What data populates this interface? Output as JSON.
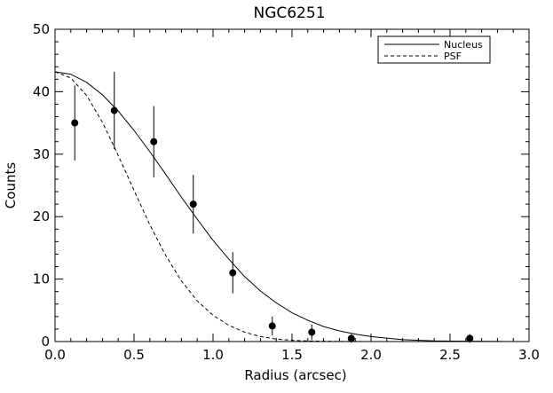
{
  "chart_data": {
    "type": "scatter",
    "title": "NGC6251",
    "xlabel": "Radius (arcsec)",
    "ylabel": "Counts",
    "xlim": [
      0.0,
      3.0
    ],
    "ylim": [
      0,
      50
    ],
    "xticks": [
      0.0,
      0.5,
      1.0,
      1.5,
      2.0,
      2.5,
      3.0
    ],
    "xtick_labels": [
      "0.0",
      "0.5",
      "1.0",
      "1.5",
      "2.0",
      "2.5",
      "3.0"
    ],
    "yticks": [
      0,
      10,
      20,
      30,
      40,
      50
    ],
    "ytick_labels": [
      "0",
      "10",
      "20",
      "30",
      "40",
      "50"
    ],
    "grid": false,
    "legend": {
      "placement": "top-right",
      "entries": [
        {
          "label": "Nucleus",
          "style": "solid"
        },
        {
          "label": "PSF",
          "style": "dashed"
        }
      ]
    },
    "points": [
      {
        "x": 0.125,
        "y": 35.0,
        "err": 6.0
      },
      {
        "x": 0.375,
        "y": 37.0,
        "err": 6.2
      },
      {
        "x": 0.625,
        "y": 32.0,
        "err": 5.7
      },
      {
        "x": 0.875,
        "y": 22.0,
        "err": 4.7
      },
      {
        "x": 1.125,
        "y": 11.0,
        "err": 3.3
      },
      {
        "x": 1.375,
        "y": 2.5,
        "err": 1.5
      },
      {
        "x": 1.625,
        "y": 1.5,
        "err": 1.2
      },
      {
        "x": 1.875,
        "y": 0.5,
        "err": 0.7
      },
      {
        "x": 2.625,
        "y": 0.5,
        "err": 0.7
      }
    ],
    "series": [
      {
        "name": "Nucleus",
        "style": "solid",
        "x": [
          0.0,
          0.1,
          0.2,
          0.3,
          0.4,
          0.5,
          0.6,
          0.7,
          0.8,
          0.9,
          1.0,
          1.1,
          1.2,
          1.3,
          1.4,
          1.5,
          1.6,
          1.7,
          1.8,
          1.9,
          2.0,
          2.2,
          2.4,
          2.6,
          2.8,
          2.9
        ],
        "y": [
          43.2,
          42.8,
          41.5,
          39.5,
          36.9,
          33.8,
          30.4,
          26.8,
          23.1,
          19.6,
          16.2,
          13.2,
          10.4,
          8.1,
          6.2,
          4.6,
          3.4,
          2.4,
          1.7,
          1.2,
          0.8,
          0.3,
          0.1,
          0.05,
          0.02,
          0.0
        ]
      },
      {
        "name": "PSF",
        "style": "dashed",
        "x": [
          0.0,
          0.1,
          0.2,
          0.3,
          0.4,
          0.5,
          0.6,
          0.7,
          0.8,
          0.9,
          1.0,
          1.1,
          1.2,
          1.3,
          1.4,
          1.5,
          1.6,
          1.7,
          1.8,
          1.9,
          2.0
        ],
        "y": [
          43.2,
          42.2,
          39.4,
          35.1,
          29.8,
          24.2,
          18.7,
          13.8,
          9.7,
          6.5,
          4.2,
          2.6,
          1.5,
          0.8,
          0.4,
          0.2,
          0.1,
          0.05,
          0.02,
          0.01,
          0.0
        ]
      }
    ]
  }
}
